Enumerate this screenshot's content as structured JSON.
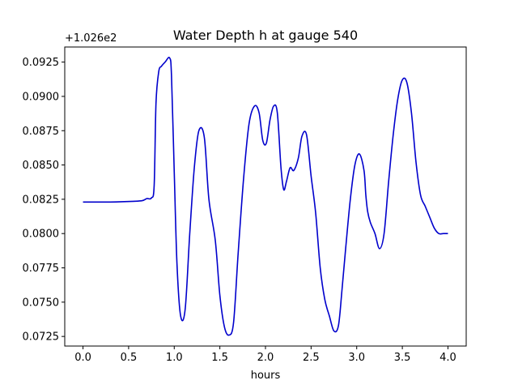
{
  "chart_data": {
    "type": "line",
    "title": "Water Depth h at gauge 540",
    "xlabel": "hours",
    "ylabel": "",
    "y_offset_label": "+1.026e2",
    "xlim": [
      -0.2,
      4.2
    ],
    "ylim": [
      0.0718,
      0.0936
    ],
    "x_ticks": [
      0.0,
      0.5,
      1.0,
      1.5,
      2.0,
      2.5,
      3.0,
      3.5,
      4.0
    ],
    "x_tick_labels": [
      "0.0",
      "0.5",
      "1.0",
      "1.5",
      "2.0",
      "2.5",
      "3.0",
      "3.5",
      "4.0"
    ],
    "y_ticks": [
      0.0725,
      0.075,
      0.0775,
      0.08,
      0.0825,
      0.085,
      0.0875,
      0.09,
      0.0925
    ],
    "y_tick_labels": [
      "0.0725",
      "0.0750",
      "0.0775",
      "0.0800",
      "0.0825",
      "0.0850",
      "0.0875",
      "0.0900",
      "0.0925"
    ],
    "grid": false,
    "line_color": "#0000cc",
    "series": [
      {
        "x": [
          0.0,
          0.3,
          0.55,
          0.65,
          0.7,
          0.75,
          0.78,
          0.8,
          0.83,
          0.86,
          0.9,
          0.95,
          0.97,
          1.0,
          1.03,
          1.07,
          1.12,
          1.17,
          1.22,
          1.27,
          1.33,
          1.38,
          1.45,
          1.5,
          1.55,
          1.6,
          1.65,
          1.7,
          1.76,
          1.82,
          1.88,
          1.93,
          1.97,
          2.01,
          2.05,
          2.09,
          2.13,
          2.17,
          2.2,
          2.23,
          2.27,
          2.31,
          2.36,
          2.4,
          2.45,
          2.5,
          2.55,
          2.6,
          2.65,
          2.7,
          2.75,
          2.8,
          2.84,
          2.88,
          2.93,
          2.98,
          3.03,
          3.08,
          3.1,
          3.12,
          3.15,
          3.2,
          3.25,
          3.3,
          3.35,
          3.4,
          3.45,
          3.5,
          3.55,
          3.6,
          3.65,
          3.7,
          3.75,
          3.8,
          3.85,
          3.9,
          3.95,
          4.0
        ],
        "values": [
          0.0823,
          0.0823,
          0.08235,
          0.0824,
          0.08255,
          0.0826,
          0.0835,
          0.0895,
          0.0918,
          0.0922,
          0.0925,
          0.0928,
          0.0915,
          0.0845,
          0.0778,
          0.074,
          0.0745,
          0.08,
          0.0848,
          0.0875,
          0.087,
          0.0825,
          0.0795,
          0.0755,
          0.0732,
          0.0726,
          0.0735,
          0.0785,
          0.084,
          0.088,
          0.0893,
          0.0888,
          0.0868,
          0.0866,
          0.0883,
          0.0893,
          0.0888,
          0.0848,
          0.0832,
          0.0838,
          0.0848,
          0.0846,
          0.0855,
          0.0871,
          0.0872,
          0.0842,
          0.0815,
          0.0775,
          0.0752,
          0.074,
          0.0729,
          0.0733,
          0.076,
          0.079,
          0.0825,
          0.085,
          0.0858,
          0.0846,
          0.0828,
          0.0816,
          0.0808,
          0.08,
          0.0789,
          0.08,
          0.0838,
          0.0872,
          0.0898,
          0.0912,
          0.091,
          0.0888,
          0.0852,
          0.0828,
          0.082,
          0.0812,
          0.0804,
          0.08,
          0.08,
          0.08
        ]
      }
    ]
  }
}
